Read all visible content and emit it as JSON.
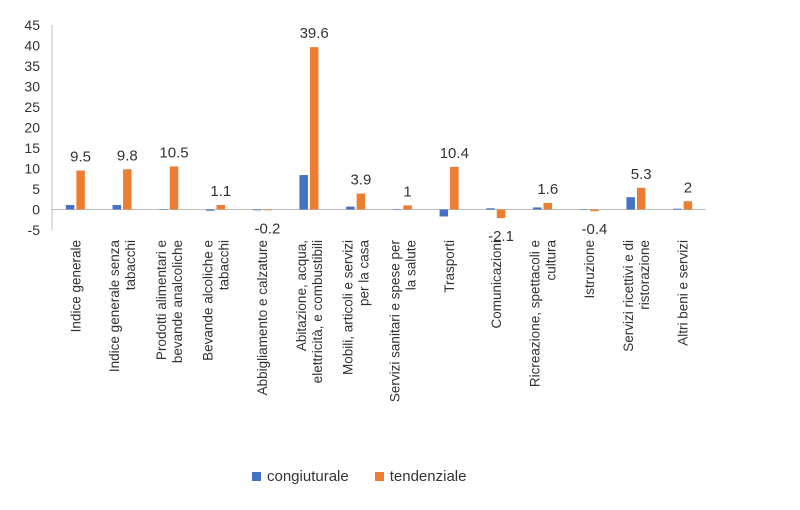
{
  "chart_data": {
    "type": "bar",
    "categories": [
      [
        "Indice generale"
      ],
      [
        "Indice generale senza",
        "tabacchi"
      ],
      [
        "Prodotti alimentari e",
        "bevande analcoliche"
      ],
      [
        "Bevande alcoliche e",
        "tabacchi"
      ],
      [
        "Abbigliamento e calzature"
      ],
      [
        "Abitazione, acqua,",
        "elettricità, e combustibili"
      ],
      [
        "Mobili, articoli e servizi",
        "per la casa"
      ],
      [
        "Servizi sanitari e spese per",
        "la salute"
      ],
      [
        "Trasporti"
      ],
      [
        "Comunicazioni"
      ],
      [
        "Ricreazione, spettacoli e",
        "cultura"
      ],
      [
        "Istruzione"
      ],
      [
        "Servizi ricettivi e di",
        "ristorazione"
      ],
      [
        "Altri beni e servizi"
      ]
    ],
    "series": [
      {
        "name": "congiuturale",
        "color": "#4472C4",
        "values": [
          1.1,
          1.1,
          0.0,
          -0.3,
          -0.2,
          8.4,
          0.7,
          0.0,
          -1.7,
          0.3,
          0.5,
          0.0,
          3.0,
          0.2
        ],
        "labels": []
      },
      {
        "name": "tendenziale",
        "color": "#ED7D31",
        "values": [
          9.5,
          9.8,
          10.5,
          1.1,
          -0.2,
          39.6,
          3.9,
          1.0,
          10.4,
          -2.1,
          1.6,
          -0.4,
          5.3,
          2.0
        ],
        "labels": [
          "9.5",
          "9.8",
          "10.5",
          "1.1",
          "-0.2",
          "39.6",
          "3.9",
          "1",
          "10.4",
          "-2.1",
          "1.6",
          "-0.4",
          "5.3",
          "2"
        ]
      }
    ],
    "yticks": [
      "45",
      "40",
      "35",
      "30",
      "25",
      "20",
      "15",
      "10",
      "5",
      "0",
      "-5"
    ],
    "ylim": [
      -5,
      45
    ],
    "grid": false,
    "legend_position": "bottom",
    "xlabel": "",
    "ylabel": "",
    "title": ""
  }
}
